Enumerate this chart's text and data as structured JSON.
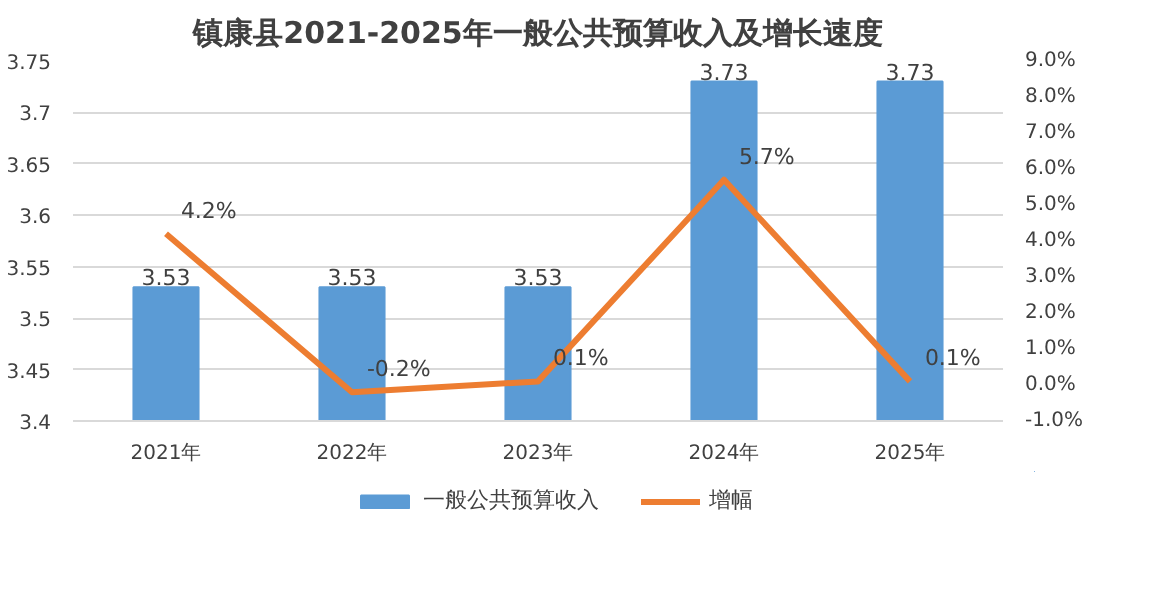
{
  "chart_data": {
    "type": "bar",
    "title": "镇康县2021-2025年一般公共预算收入及增长速度",
    "categories": [
      "2021年",
      "2022年",
      "2023年",
      "2024年",
      "2025年"
    ],
    "series": [
      {
        "name": "一般公共预算收入",
        "color": "#5b9bd5",
        "values": [
          3.53,
          3.53,
          3.53,
          3.73,
          3.73
        ],
        "value_labels": [
          "3.53",
          "3.53",
          "3.53",
          "3.73",
          "3.73"
        ]
      },
      {
        "name": "增幅",
        "type": "line",
        "axis": "y2",
        "color": "#ed7d31",
        "values": [
          4.2,
          -0.2,
          0.1,
          5.7,
          0.1
        ],
        "value_labels": [
          "4.2%",
          "-0.2%",
          "0.1%",
          "5.7%",
          "0.1%"
        ]
      }
    ],
    "ylim": [
      3.4,
      3.75
    ],
    "yticks": [
      3.4,
      3.45,
      3.5,
      3.55,
      3.6,
      3.65,
      3.7,
      3.75
    ],
    "y2lim": [
      -1,
      9
    ],
    "y2ticks": [
      {
        "value": -1,
        "label": "-1.0%"
      },
      {
        "value": 0,
        "label": "0.0%"
      },
      {
        "value": 1,
        "label": "1.0%"
      },
      {
        "value": 2,
        "label": "2.0%"
      },
      {
        "value": 3,
        "label": "3.0%"
      },
      {
        "value": 4,
        "label": "4.0%"
      },
      {
        "value": 5,
        "label": "5.0%"
      },
      {
        "value": 6,
        "label": "6.0%"
      },
      {
        "value": 7,
        "label": "7.0%"
      },
      {
        "value": 8,
        "label": "8.0%"
      },
      {
        "value": 9,
        "label": "9.0%"
      }
    ],
    "grid": "y",
    "legend": "bottom",
    "marker": "none",
    "line_style": "solid"
  }
}
